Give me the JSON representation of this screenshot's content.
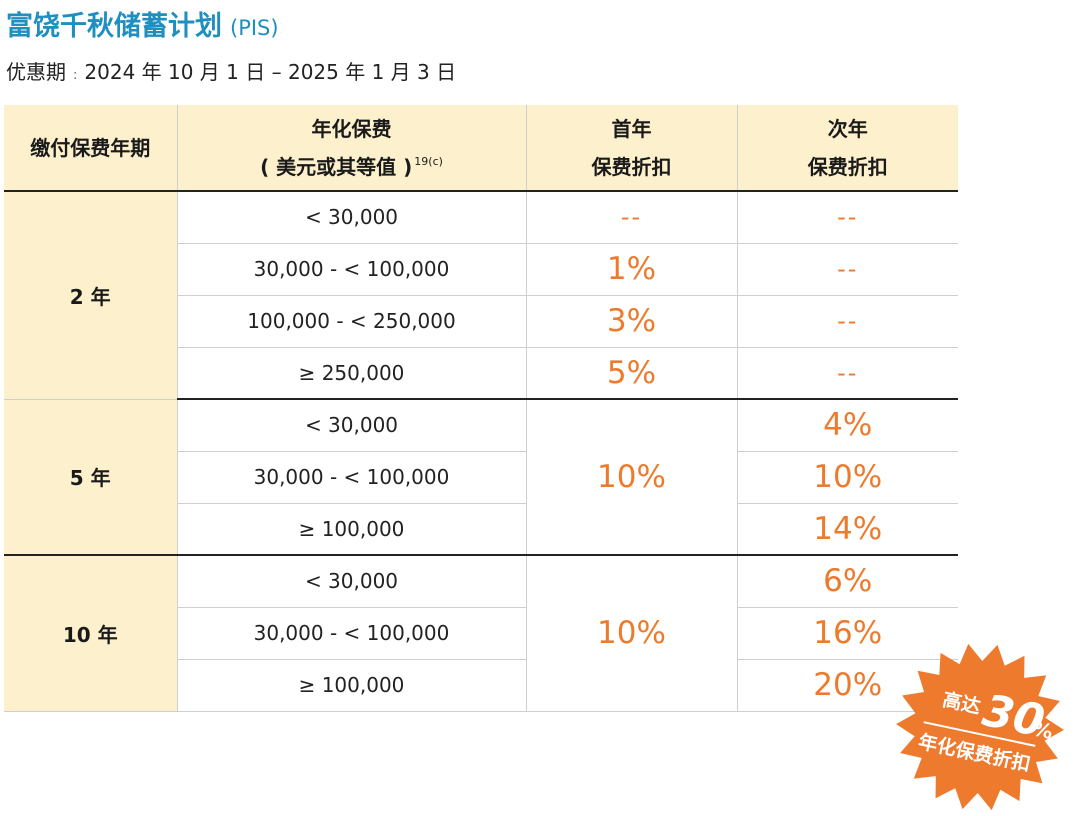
{
  "header": {
    "title": "富饶千秋储蓄计划",
    "code": "(PIS)",
    "period_label": "优惠期",
    "period_sep": ":",
    "period_value": "2024 年 10 月 1 日 – 2025 年 1 月 3 日"
  },
  "table": {
    "col_term": "缴付保费年期",
    "col_premium_line1": "年化保费",
    "col_premium_line2": "( 美元或其等值 )",
    "col_premium_note": "19(c)",
    "col_first_line1": "首年",
    "col_first_line2": "保费折扣",
    "col_second_line1": "次年",
    "col_second_line2": "保费折扣",
    "groups": [
      {
        "term": "2 年",
        "rows": [
          {
            "amount": "< 30,000",
            "first": "--",
            "second": "--"
          },
          {
            "amount": "30,000 - < 100,000",
            "first": "1%",
            "second": "--"
          },
          {
            "amount": "100,000 - < 250,000",
            "first": "3%",
            "second": "--"
          },
          {
            "amount": "≥ 250,000",
            "first": "5%",
            "second": "--"
          }
        ]
      },
      {
        "term": "5 年",
        "first": "10%",
        "rows": [
          {
            "amount": "< 30,000",
            "second": "4%"
          },
          {
            "amount": "30,000 - < 100,000",
            "second": "10%"
          },
          {
            "amount": "≥ 100,000",
            "second": "14%"
          }
        ]
      },
      {
        "term": "10 年",
        "first": "10%",
        "rows": [
          {
            "amount": "< 30,000",
            "second": "6%"
          },
          {
            "amount": "30,000 - < 100,000",
            "second": "16%"
          },
          {
            "amount": "≥ 100,000",
            "second": "20%"
          }
        ]
      }
    ]
  },
  "badge": {
    "prefix": "高达",
    "value": "30",
    "unit": "%",
    "caption": "年化保费折扣",
    "color": "#ee7a2e"
  }
}
